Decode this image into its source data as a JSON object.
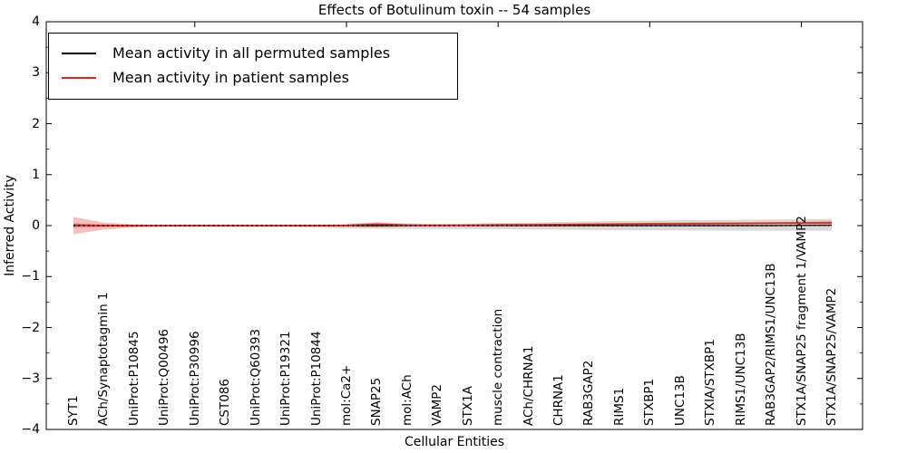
{
  "figure": {
    "title": "Effects of Botulinum toxin -- 54 samples"
  },
  "axes": {
    "xlabel": "Cellular Entities",
    "ylabel": "Inferred Activity",
    "ytick_labels": [
      "4",
      "3",
      "2",
      "1",
      "0",
      "−1",
      "−2",
      "−3",
      "−4"
    ]
  },
  "legend": {
    "items": [
      {
        "label": "Mean activity in all permuted samples",
        "color": "#000000"
      },
      {
        "label": "Mean activity in patient samples",
        "color": "#ee2211"
      }
    ]
  },
  "chart_data": {
    "type": "line",
    "title": "Effects of Botulinum toxin -- 54 samples",
    "xlabel": "Cellular Entities",
    "ylabel": "Inferred Activity",
    "ylim": [
      -4,
      4
    ],
    "yticks": [
      4,
      3,
      2,
      1,
      0,
      -1,
      -2,
      -3,
      -4
    ],
    "yticks_minor": [
      3.5,
      2.5,
      1.5,
      0.5,
      -0.5,
      -1.5,
      -2.5,
      -3.5
    ],
    "xticks_top_indices": [
      4,
      9,
      14,
      19,
      24
    ],
    "grid": false,
    "legend_position": "upper left",
    "categories": [
      "SYT1",
      "ACh/Synaptotagmin 1",
      "UniProt:P10845",
      "UniProt:Q00496",
      "UniProt:P30996",
      "CST086",
      "UniProt:Q60393",
      "UniProt:P19321",
      "UniProt:P10844",
      "mol:Ca2+",
      "SNAP25",
      "mol:ACh",
      "VAMP2",
      "STX1A",
      "muscle contraction",
      "ACh/CHRNA1",
      "CHRNA1",
      "RAB3GAP2",
      "RIMS1",
      "STXBP1",
      "UNC13B",
      "STXIA/STXBP1",
      "RIMS1/UNC13B",
      "RAB3GAP2/RIMS1/UNC13B",
      "STX1A/SNAP25 fragment 1/VAMP2",
      "STX1A/SNAP25/VAMP2"
    ],
    "series": [
      {
        "name": "Mean activity in all permuted samples",
        "color": "#000000",
        "values": [
          0,
          0,
          0,
          0,
          0,
          0,
          0,
          0,
          0,
          0,
          0,
          0,
          0,
          0,
          0,
          0,
          0,
          0,
          0,
          0,
          0,
          0,
          0,
          0,
          0.004,
          0.005
        ]
      },
      {
        "name": "Mean activity in patient samples",
        "color": "#ee2211",
        "values": [
          0.01,
          0.0,
          0.0,
          0.0,
          0.0,
          0.0,
          0.0,
          0.0,
          0.0,
          0.005,
          0.027,
          0.01,
          0.005,
          0.008,
          0.012,
          0.016,
          0.02,
          0.024,
          0.028,
          0.032,
          0.036,
          0.04,
          0.043,
          0.046,
          0.05,
          0.053
        ]
      }
    ],
    "bands": [
      {
        "name": "permuted-confidence-band",
        "color": "rgba(130,130,130,0.30)",
        "upper": [
          0.05,
          0.025,
          0.015,
          0.012,
          0.012,
          0.012,
          0.012,
          0.012,
          0.015,
          0.018,
          0.02,
          0.022,
          0.028,
          0.035,
          0.05,
          0.06,
          0.07,
          0.08,
          0.09,
          0.098,
          0.105,
          0.11,
          0.115,
          0.12,
          0.128,
          0.13
        ],
        "lower": [
          -0.05,
          -0.03,
          -0.025,
          -0.022,
          -0.022,
          -0.022,
          -0.022,
          -0.025,
          -0.04,
          -0.055,
          -0.06,
          -0.062,
          -0.065,
          -0.068,
          -0.07,
          -0.075,
          -0.08,
          -0.085,
          -0.09,
          -0.092,
          -0.095,
          -0.096,
          -0.097,
          -0.098,
          -0.1,
          -0.1
        ]
      },
      {
        "name": "patient-confidence-band",
        "color": "rgba(225,45,45,0.30)",
        "upper": [
          0.17,
          0.06,
          0.025,
          0.015,
          0.012,
          0.012,
          0.012,
          0.012,
          0.014,
          0.02,
          0.065,
          0.03,
          0.02,
          0.025,
          0.03,
          0.035,
          0.04,
          0.045,
          0.05,
          0.055,
          0.06,
          0.063,
          0.066,
          0.07,
          0.075,
          0.09
        ],
        "lower": [
          -0.17,
          -0.08,
          -0.035,
          -0.02,
          -0.015,
          -0.015,
          -0.015,
          -0.015,
          -0.018,
          -0.02,
          -0.03,
          -0.015,
          -0.012,
          -0.004,
          0.0,
          0.004,
          0.008,
          0.012,
          0.016,
          0.02,
          0.024,
          0.028,
          0.031,
          0.034,
          0.038,
          0.02
        ]
      }
    ]
  }
}
